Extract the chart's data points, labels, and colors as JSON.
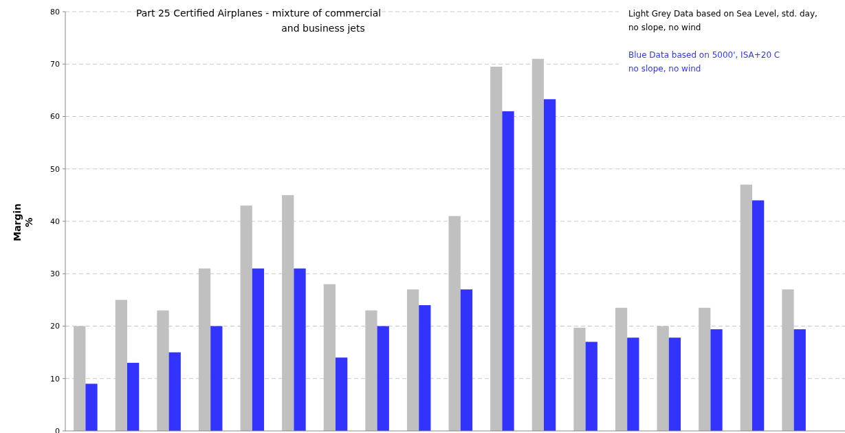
{
  "chart_data": {
    "type": "bar",
    "title": "Part 25 Certified Airplanes - mixture of commercial\nand business jets",
    "ylabel": "Margin\n%",
    "annotations": [
      "Light Grey Data based on Sea Level, std. day,\nno slope, no wind",
      "Blue Data based on 5000', ISA+20 C\nno slope, no wind"
    ],
    "categories": [
      null,
      null,
      null,
      null,
      null,
      null,
      null,
      null,
      null,
      null,
      null,
      null,
      null,
      null,
      null,
      null,
      null,
      null
    ],
    "series": [
      {
        "color": "#c0c0c0",
        "values": [
          20,
          25,
          23,
          31,
          43,
          45,
          28,
          23,
          27,
          41,
          69.5,
          71,
          19.7,
          23.5,
          20,
          23.5,
          47,
          27
        ]
      },
      {
        "color": "#3333ff",
        "values": [
          9,
          13,
          15,
          20,
          31,
          31,
          14,
          20,
          24,
          27,
          61,
          63.3,
          17,
          17.8,
          17.8,
          19.4,
          44,
          19.4
        ]
      }
    ],
    "ylim": [
      0,
      80
    ],
    "yticks": [
      0,
      10,
      20,
      30,
      40,
      50,
      60,
      70,
      80
    ],
    "grid": "y",
    "tick_labels": "y"
  }
}
